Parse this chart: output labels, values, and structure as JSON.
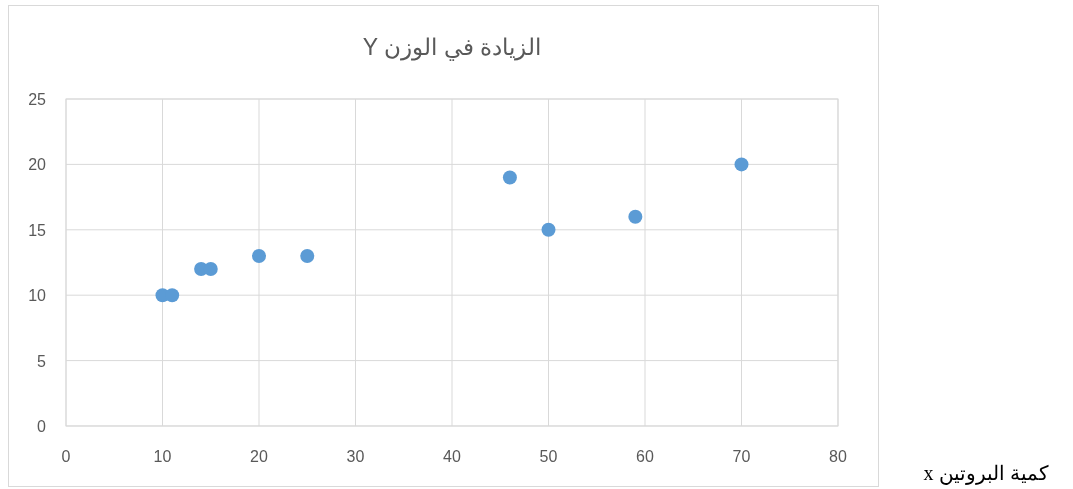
{
  "chart_data": {
    "type": "scatter",
    "title": "الزيادة في الوزن Y",
    "xlabel": "كمية البروتين x",
    "x": [
      10,
      11,
      14,
      15,
      20,
      25,
      46,
      50,
      59,
      70
    ],
    "values": [
      10,
      10,
      12,
      12,
      13,
      13,
      19,
      15,
      16,
      20
    ],
    "color": "#5b9bd5",
    "marker": "circle",
    "xlim": [
      0,
      80
    ],
    "ylim": [
      0,
      25
    ],
    "xticks": [
      0,
      10,
      20,
      30,
      40,
      50,
      60,
      70,
      80
    ],
    "yticks": [
      0,
      5,
      10,
      15,
      20,
      25
    ],
    "grid": true
  }
}
